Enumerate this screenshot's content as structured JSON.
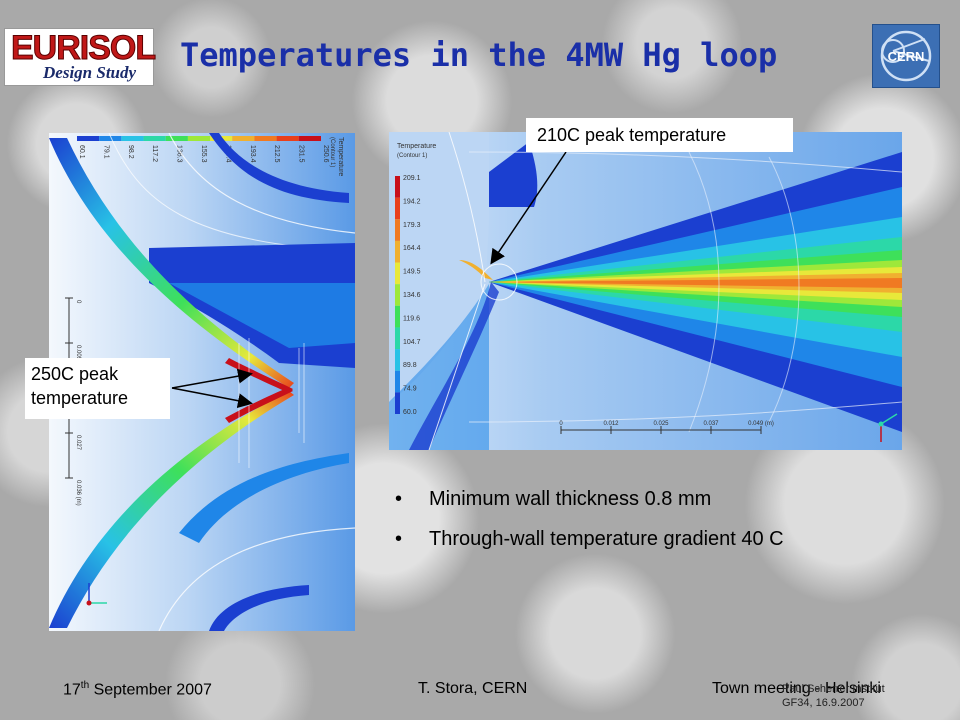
{
  "slide": {
    "title": "Temperatures in the 4MW Hg loop",
    "logos": {
      "left": {
        "word": "EURISOL",
        "sub": "Design Study"
      },
      "right": {
        "word": "CERN"
      }
    },
    "callouts": {
      "right": "210C peak temperature",
      "left": "250C peak temperature"
    },
    "bullets": [
      {
        "symbol": "•",
        "text": "Minimum wall thickness 0.8 mm"
      },
      {
        "symbol": "•",
        "text": "Through-wall temperature gradient 40 C"
      }
    ],
    "footer": {
      "date_day": "17",
      "date_suffix": "th",
      "date_rest": " September 2007",
      "author": "T. Stora, CERN",
      "event": "Town meeting - Helsinki",
      "credit_line1": "Paul Scherrer Institut",
      "credit_line2": "GF34, 16.9.2007"
    }
  },
  "left_plot": {
    "legend_title": "Temperature",
    "legend_sub": "(Contour 1)",
    "legend_values": [
      "60.1",
      "79.1",
      "98.2",
      "117.2",
      "136.3",
      "155.3",
      "174.4",
      "193.4",
      "212.5",
      "231.5",
      "250.6"
    ],
    "scale_ticks": [
      "0",
      "0.009",
      "0.018",
      "0.027",
      "0.036 (m)"
    ],
    "colors": [
      "#1b3fd0",
      "#1f86e8",
      "#28c2e6",
      "#2cd8a8",
      "#3ee05a",
      "#9ee83a",
      "#e8e83a",
      "#f0b030",
      "#f07a22",
      "#e8401c",
      "#c8101a"
    ]
  },
  "right_plot": {
    "legend_title": "Temperature",
    "legend_sub": "(Contour 1)",
    "legend_values": [
      "209.1",
      "194.2",
      "179.3",
      "164.4",
      "149.5",
      "134.6",
      "119.6",
      "104.7",
      "89.8",
      "74.9",
      "60.0"
    ],
    "scale_ticks": [
      "0",
      "0.012",
      "0.025",
      "0.037",
      "0.049 (m)"
    ],
    "colors": [
      "#c8101a",
      "#e8401c",
      "#f07a22",
      "#f0b030",
      "#e8e83a",
      "#9ee83a",
      "#3ee05a",
      "#2cd8a8",
      "#28c2e6",
      "#1f86e8",
      "#1b3fd0"
    ]
  }
}
